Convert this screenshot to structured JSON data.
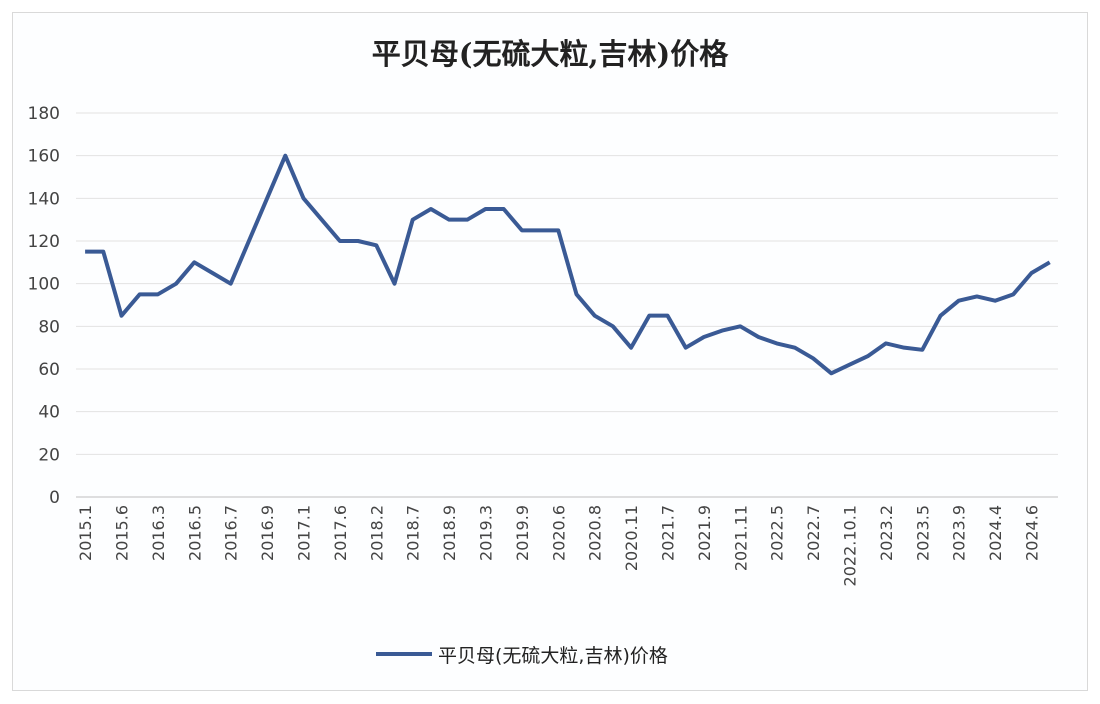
{
  "chart_data": {
    "type": "line",
    "title": "平贝母(无硫大粒,吉林)价格",
    "xlabel": "",
    "ylabel": "",
    "ylim": [
      0,
      180
    ],
    "yticks": [
      0,
      20,
      40,
      60,
      80,
      100,
      120,
      140,
      160,
      180
    ],
    "grid": true,
    "legend_position": "bottom",
    "tick_labels": [
      "2015.1",
      "2015.6",
      "2016.3",
      "2016.5",
      "2016.7",
      "2016.9",
      "2017.1",
      "2017.6",
      "2018.2",
      "2018.7",
      "2018.9",
      "2019.3",
      "2019.9",
      "2020.6",
      "2020.8",
      "2020.11",
      "2021.7",
      "2021.9",
      "2021.11",
      "2022.5",
      "2022.7",
      "2022.10.1",
      "2023.2",
      "2023.5",
      "2023.9",
      "2024.4",
      "2024.6"
    ],
    "series": [
      {
        "name": "平贝母(无硫大粒,吉林)价格",
        "color": "#3a5a95",
        "values": [
          115,
          115,
          85,
          95,
          95,
          100,
          110,
          105,
          100,
          120,
          140,
          160,
          140,
          130,
          120,
          120,
          118,
          100,
          130,
          135,
          130,
          130,
          135,
          135,
          125,
          125,
          125,
          95,
          85,
          80,
          70,
          85,
          85,
          70,
          75,
          78,
          80,
          75,
          72,
          70,
          65,
          58,
          62,
          66,
          72,
          70,
          69,
          85,
          92,
          94,
          92,
          95,
          105,
          110
        ]
      }
    ]
  }
}
